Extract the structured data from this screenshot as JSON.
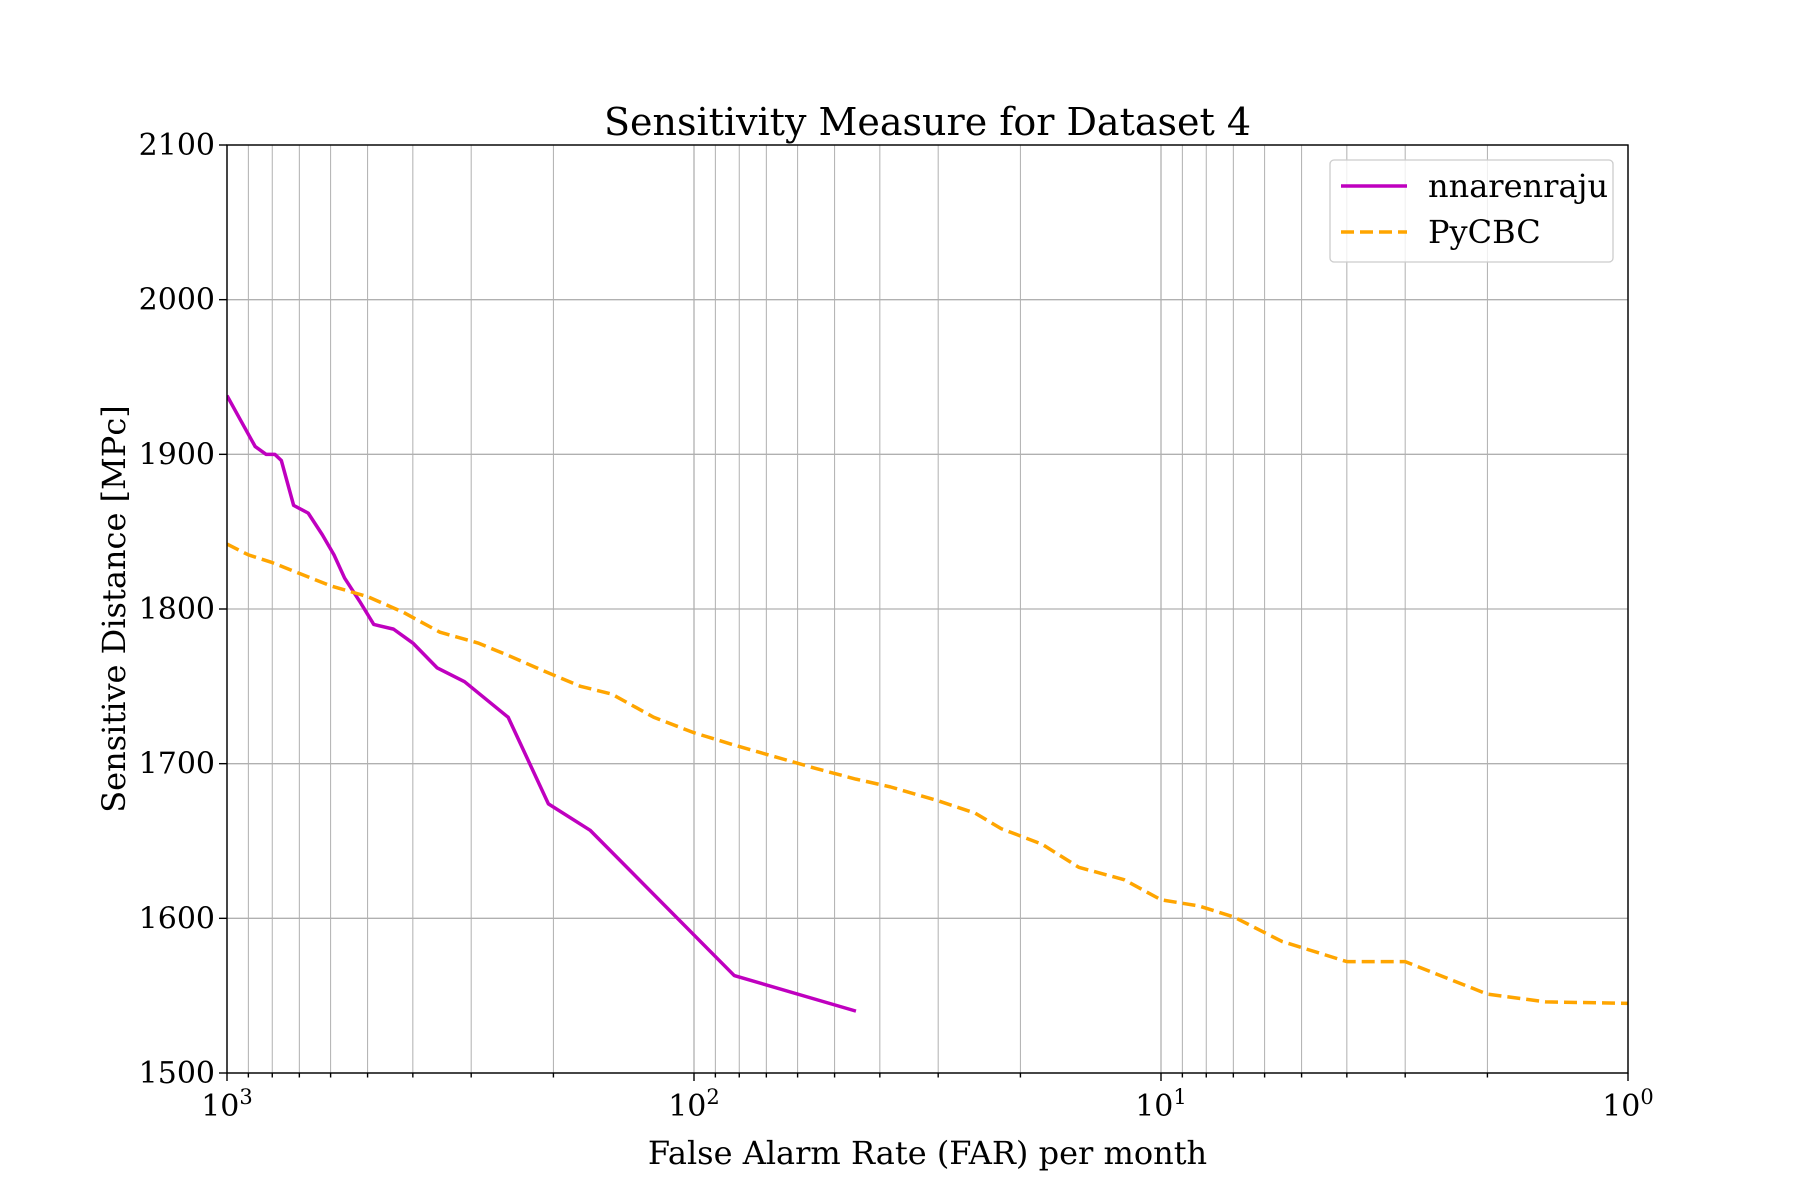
{
  "chart_data": {
    "type": "line",
    "title": "Sensitivity Measure for Dataset 4",
    "xlabel": "False Alarm Rate (FAR) per month",
    "ylabel": "Sensitive Distance [MPc]",
    "xscale": "log",
    "x_inverted": true,
    "xlim": [
      1000,
      1
    ],
    "ylim": [
      1500,
      2100
    ],
    "grid": true,
    "legend_position": "top-right",
    "x_ticks": [
      {
        "base": "10",
        "exp": "3",
        "value": 1000
      },
      {
        "base": "10",
        "exp": "2",
        "value": 100
      },
      {
        "base": "10",
        "exp": "1",
        "value": 10
      },
      {
        "base": "10",
        "exp": "0",
        "value": 1
      }
    ],
    "y_ticks": [
      "1500",
      "1600",
      "1700",
      "1800",
      "1900",
      "2000",
      "2100"
    ],
    "series": [
      {
        "name": "nnarenraju",
        "color": "#bf00bf",
        "style": "solid",
        "x": [
          1000,
          935,
          870,
          825,
          790,
          765,
          720,
          670,
          625,
          590,
          560,
          520,
          485,
          440,
          400,
          355,
          310,
          250,
          205,
          167,
          82,
          45
        ],
        "y": [
          1938,
          1922,
          1905,
          1900,
          1900,
          1896,
          1867,
          1862,
          1848,
          1835,
          1820,
          1805,
          1790,
          1787,
          1778,
          1762,
          1753,
          1730,
          1674,
          1657,
          1563,
          1540
        ]
      },
      {
        "name": "PyCBC",
        "color": "#ffa500",
        "style": "dashed",
        "x": [
          1000,
          900,
          800,
          700,
          600,
          500,
          420,
          350,
          290,
          250,
          210,
          175,
          150,
          122,
          100,
          82,
          68,
          55,
          45,
          38,
          30,
          25,
          22,
          18,
          15,
          12,
          10,
          8.3,
          7.0,
          5.5,
          4.0,
          3.0,
          2.0,
          1.5,
          1.0
        ],
        "y": [
          1842,
          1835,
          1830,
          1823,
          1815,
          1808,
          1798,
          1785,
          1778,
          1770,
          1760,
          1750,
          1745,
          1730,
          1720,
          1712,
          1705,
          1697,
          1690,
          1685,
          1676,
          1668,
          1658,
          1648,
          1633,
          1625,
          1612,
          1608,
          1601,
          1585,
          1572,
          1572,
          1551,
          1546,
          1545
        ]
      }
    ]
  }
}
